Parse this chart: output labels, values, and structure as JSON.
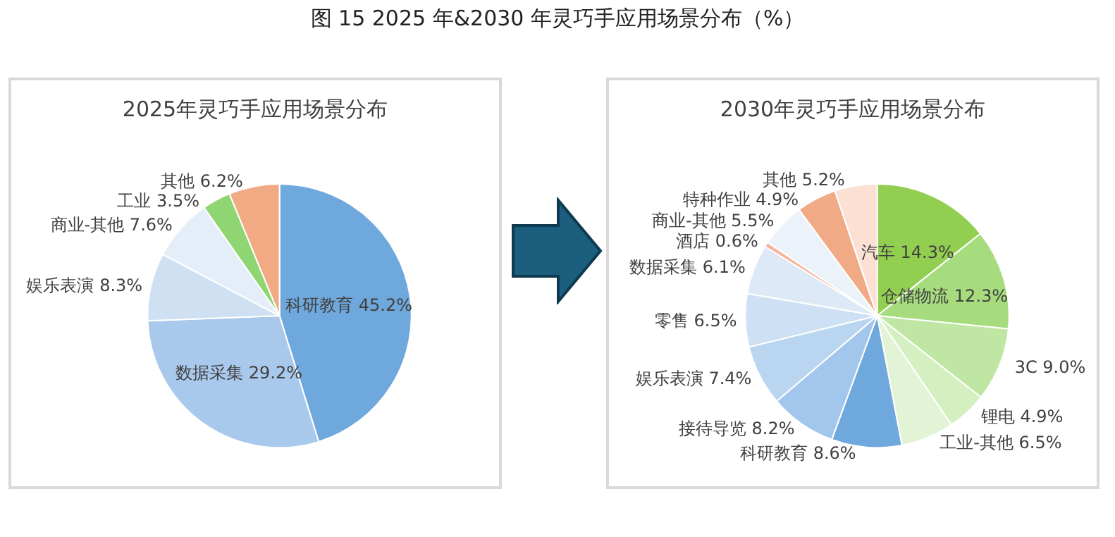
{
  "chart_data": [
    {
      "type": "pie",
      "title": "2025年灵巧手应用场景分布",
      "annotations": [
        "图 15 2025 年&2030 年灵巧手应用场景分布（%）"
      ],
      "categories": [
        "科研教育",
        "数据采集",
        "娱乐表演",
        "商业-其他",
        "工业",
        "其他"
      ],
      "values": [
        45.2,
        29.2,
        8.3,
        7.6,
        3.5,
        6.2
      ],
      "value_labels": [
        "45.2%",
        "29.2%",
        "8.3%",
        "7.6%",
        "3.5%",
        "6.2%"
      ],
      "colors": [
        "#6fa8dc",
        "#a9c9ec",
        "#cfe0f3",
        "#e4eef9",
        "#8fd672",
        "#f2aa84"
      ]
    },
    {
      "type": "pie",
      "title": "2030年灵巧手应用场景分布",
      "categories": [
        "汽车",
        "仓储物流",
        "3C",
        "锂电",
        "工业-其他",
        "科研教育",
        "接待导览",
        "娱乐表演",
        "零售",
        "数据采集",
        "酒店",
        "商业-其他",
        "特种作业",
        "其他"
      ],
      "values": [
        14.3,
        12.3,
        9.0,
        4.9,
        6.5,
        8.6,
        8.2,
        7.4,
        6.5,
        6.1,
        0.6,
        5.5,
        4.9,
        5.2
      ],
      "value_labels": [
        "14.3%",
        "12.3%",
        "9.0%",
        "4.9%",
        "6.5%",
        "8.6%",
        "8.2%",
        "7.4%",
        "6.5%",
        "6.1%",
        "0.6%",
        "5.5%",
        "4.9%",
        "5.2%"
      ],
      "colors": [
        "#92cf50",
        "#a6dc7e",
        "#bfe6a2",
        "#d4efc0",
        "#e3f4d6",
        "#6fa8dc",
        "#a3c6ec",
        "#bad5f0",
        "#cde0f4",
        "#dde9f7",
        "#f5b49a",
        "#ebf2fa",
        "#f0aa86",
        "#fbe0d3"
      ]
    }
  ]
}
